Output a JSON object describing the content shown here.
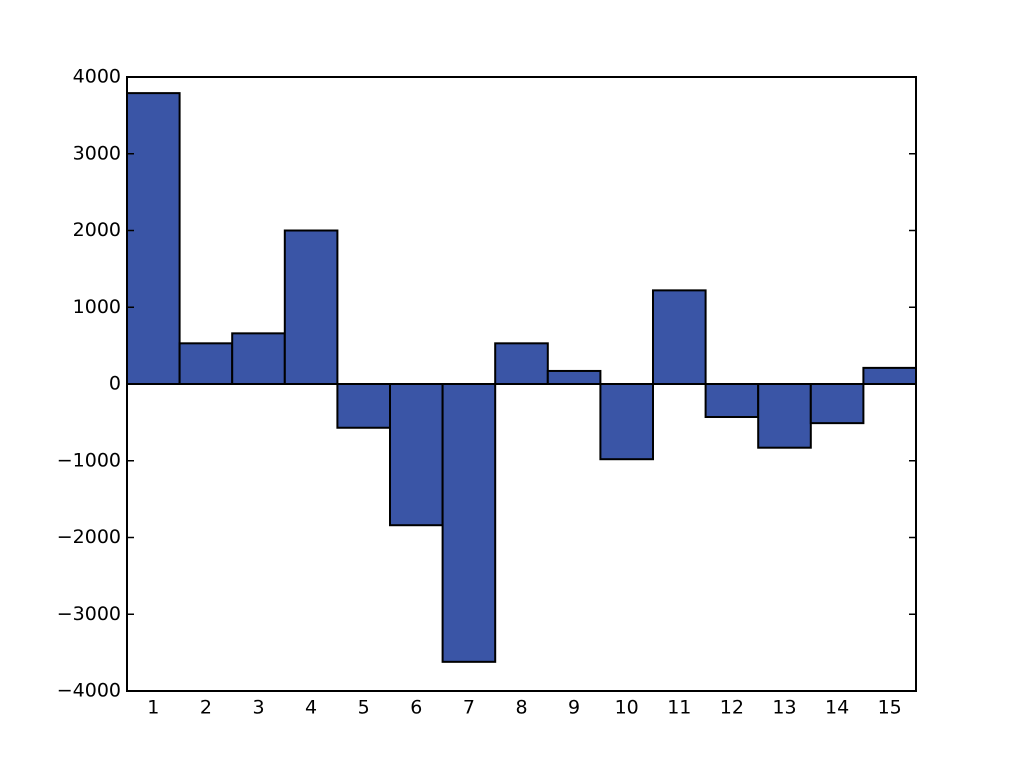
{
  "chart_data": {
    "type": "bar",
    "categories": [
      "1",
      "2",
      "3",
      "4",
      "5",
      "6",
      "7",
      "8",
      "9",
      "10",
      "11",
      "12",
      "13",
      "14",
      "15"
    ],
    "values": [
      3790,
      530,
      660,
      2000,
      -570,
      -1840,
      -3620,
      530,
      170,
      -980,
      1220,
      -430,
      -830,
      -510,
      210
    ],
    "color": "#3a55a6",
    "ylim": [
      -4000,
      4000
    ],
    "yticks": [
      {
        "value": -4000,
        "label": "−4000"
      },
      {
        "value": -3000,
        "label": "−3000"
      },
      {
        "value": -2000,
        "label": "−2000"
      },
      {
        "value": -1000,
        "label": "−1000"
      },
      0,
      1000,
      2000,
      3000,
      4000
    ],
    "grid": false
  }
}
